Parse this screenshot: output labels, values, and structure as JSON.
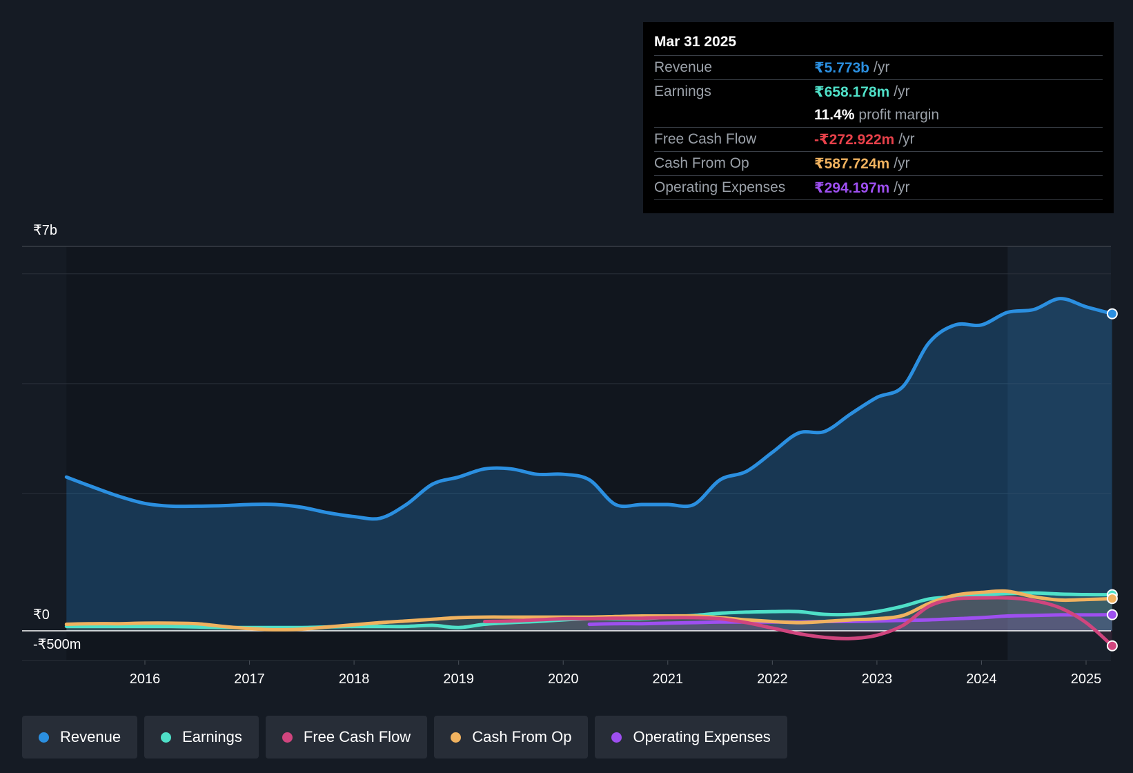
{
  "chart_data": {
    "type": "area",
    "y_axis": {
      "top_label": "₹7b",
      "zero_label": "₹0",
      "bottom_label": "-₹500m",
      "ylim": [
        -0.5,
        7.0
      ],
      "unit": "₹b"
    },
    "x_axis": {
      "ticks": [
        "2016",
        "2017",
        "2018",
        "2019",
        "2020",
        "2021",
        "2022",
        "2023",
        "2024",
        "2025"
      ],
      "xlim": [
        2015.25,
        2025.25
      ]
    },
    "grid": true,
    "highlight_range": [
      2024.25,
      2025.25
    ],
    "series": [
      {
        "name": "Revenue",
        "color": "#2b8fe0",
        "points": [
          [
            2015.25,
            2.8
          ],
          [
            2015.5,
            2.62
          ],
          [
            2015.75,
            2.45
          ],
          [
            2016.0,
            2.32
          ],
          [
            2016.25,
            2.27
          ],
          [
            2016.5,
            2.27
          ],
          [
            2016.75,
            2.28
          ],
          [
            2017.0,
            2.3
          ],
          [
            2017.25,
            2.3
          ],
          [
            2017.5,
            2.25
          ],
          [
            2017.75,
            2.15
          ],
          [
            2018.0,
            2.08
          ],
          [
            2018.25,
            2.05
          ],
          [
            2018.5,
            2.3
          ],
          [
            2018.75,
            2.67
          ],
          [
            2019.0,
            2.8
          ],
          [
            2019.25,
            2.95
          ],
          [
            2019.5,
            2.95
          ],
          [
            2019.75,
            2.85
          ],
          [
            2020.0,
            2.85
          ],
          [
            2020.25,
            2.75
          ],
          [
            2020.5,
            2.3
          ],
          [
            2020.75,
            2.3
          ],
          [
            2021.0,
            2.3
          ],
          [
            2021.25,
            2.3
          ],
          [
            2021.5,
            2.75
          ],
          [
            2021.75,
            2.9
          ],
          [
            2022.0,
            3.25
          ],
          [
            2022.25,
            3.6
          ],
          [
            2022.5,
            3.63
          ],
          [
            2022.75,
            3.95
          ],
          [
            2023.0,
            4.25
          ],
          [
            2023.25,
            4.45
          ],
          [
            2023.5,
            5.25
          ],
          [
            2023.75,
            5.57
          ],
          [
            2024.0,
            5.57
          ],
          [
            2024.25,
            5.8
          ],
          [
            2024.5,
            5.85
          ],
          [
            2024.75,
            6.05
          ],
          [
            2025.0,
            5.9
          ],
          [
            2025.25,
            5.773
          ]
        ]
      },
      {
        "name": "Earnings",
        "color": "#4fe0c8",
        "points": [
          [
            2015.25,
            0.08
          ],
          [
            2015.5,
            0.08
          ],
          [
            2015.75,
            0.08
          ],
          [
            2016.0,
            0.08
          ],
          [
            2016.25,
            0.08
          ],
          [
            2016.5,
            0.07
          ],
          [
            2016.75,
            0.06
          ],
          [
            2017.0,
            0.06
          ],
          [
            2017.25,
            0.06
          ],
          [
            2017.5,
            0.06
          ],
          [
            2017.75,
            0.07
          ],
          [
            2018.0,
            0.08
          ],
          [
            2018.25,
            0.08
          ],
          [
            2018.5,
            0.08
          ],
          [
            2018.75,
            0.1
          ],
          [
            2019.0,
            0.06
          ],
          [
            2019.25,
            0.12
          ],
          [
            2019.5,
            0.15
          ],
          [
            2019.75,
            0.17
          ],
          [
            2020.0,
            0.2
          ],
          [
            2020.25,
            0.22
          ],
          [
            2020.5,
            0.22
          ],
          [
            2020.75,
            0.22
          ],
          [
            2021.0,
            0.25
          ],
          [
            2021.25,
            0.28
          ],
          [
            2021.5,
            0.32
          ],
          [
            2021.75,
            0.34
          ],
          [
            2022.0,
            0.35
          ],
          [
            2022.25,
            0.35
          ],
          [
            2022.5,
            0.3
          ],
          [
            2022.75,
            0.3
          ],
          [
            2023.0,
            0.35
          ],
          [
            2023.25,
            0.45
          ],
          [
            2023.5,
            0.58
          ],
          [
            2023.75,
            0.62
          ],
          [
            2024.0,
            0.65
          ],
          [
            2024.25,
            0.68
          ],
          [
            2024.5,
            0.69
          ],
          [
            2024.75,
            0.67
          ],
          [
            2025.0,
            0.66
          ],
          [
            2025.25,
            0.658
          ]
        ]
      },
      {
        "name": "Free Cash Flow",
        "color": "#d0457e",
        "points": [
          [
            2019.25,
            0.17
          ],
          [
            2019.5,
            0.18
          ],
          [
            2019.75,
            0.2
          ],
          [
            2020.0,
            0.22
          ],
          [
            2020.25,
            0.22
          ],
          [
            2020.5,
            0.23
          ],
          [
            2020.75,
            0.23
          ],
          [
            2021.0,
            0.24
          ],
          [
            2021.25,
            0.24
          ],
          [
            2021.5,
            0.22
          ],
          [
            2021.75,
            0.15
          ],
          [
            2022.0,
            0.05
          ],
          [
            2022.25,
            -0.05
          ],
          [
            2022.5,
            -0.12
          ],
          [
            2022.75,
            -0.14
          ],
          [
            2023.0,
            -0.08
          ],
          [
            2023.25,
            0.1
          ],
          [
            2023.5,
            0.45
          ],
          [
            2023.75,
            0.58
          ],
          [
            2024.0,
            0.6
          ],
          [
            2024.25,
            0.6
          ],
          [
            2024.5,
            0.55
          ],
          [
            2024.75,
            0.42
          ],
          [
            2025.0,
            0.15
          ],
          [
            2025.25,
            -0.273
          ]
        ]
      },
      {
        "name": "Cash From Op",
        "color": "#f0b25f",
        "points": [
          [
            2015.25,
            0.12
          ],
          [
            2015.5,
            0.13
          ],
          [
            2015.75,
            0.13
          ],
          [
            2016.0,
            0.14
          ],
          [
            2016.25,
            0.14
          ],
          [
            2016.5,
            0.13
          ],
          [
            2016.75,
            0.08
          ],
          [
            2017.0,
            0.04
          ],
          [
            2017.25,
            0.02
          ],
          [
            2017.5,
            0.03
          ],
          [
            2017.75,
            0.07
          ],
          [
            2018.0,
            0.11
          ],
          [
            2018.25,
            0.15
          ],
          [
            2018.5,
            0.18
          ],
          [
            2018.75,
            0.21
          ],
          [
            2019.0,
            0.24
          ],
          [
            2019.25,
            0.25
          ],
          [
            2019.5,
            0.25
          ],
          [
            2019.75,
            0.25
          ],
          [
            2020.0,
            0.25
          ],
          [
            2020.25,
            0.25
          ],
          [
            2020.5,
            0.26
          ],
          [
            2020.75,
            0.27
          ],
          [
            2021.0,
            0.27
          ],
          [
            2021.25,
            0.27
          ],
          [
            2021.5,
            0.24
          ],
          [
            2021.75,
            0.2
          ],
          [
            2022.0,
            0.17
          ],
          [
            2022.25,
            0.15
          ],
          [
            2022.5,
            0.17
          ],
          [
            2022.75,
            0.2
          ],
          [
            2023.0,
            0.22
          ],
          [
            2023.25,
            0.28
          ],
          [
            2023.5,
            0.5
          ],
          [
            2023.75,
            0.65
          ],
          [
            2024.0,
            0.7
          ],
          [
            2024.25,
            0.72
          ],
          [
            2024.5,
            0.62
          ],
          [
            2024.75,
            0.56
          ],
          [
            2025.0,
            0.57
          ],
          [
            2025.25,
            0.588
          ]
        ]
      },
      {
        "name": "Operating Expenses",
        "color": "#9e4ff0",
        "points": [
          [
            2020.25,
            0.12
          ],
          [
            2020.5,
            0.13
          ],
          [
            2020.75,
            0.13
          ],
          [
            2021.0,
            0.14
          ],
          [
            2021.25,
            0.15
          ],
          [
            2021.5,
            0.16
          ],
          [
            2021.75,
            0.16
          ],
          [
            2022.0,
            0.16
          ],
          [
            2022.25,
            0.16
          ],
          [
            2022.5,
            0.17
          ],
          [
            2022.75,
            0.17
          ],
          [
            2023.0,
            0.18
          ],
          [
            2023.25,
            0.19
          ],
          [
            2023.5,
            0.2
          ],
          [
            2023.75,
            0.22
          ],
          [
            2024.0,
            0.24
          ],
          [
            2024.25,
            0.27
          ],
          [
            2024.5,
            0.28
          ],
          [
            2024.75,
            0.29
          ],
          [
            2025.0,
            0.29
          ],
          [
            2025.25,
            0.294
          ]
        ]
      }
    ]
  },
  "tooltip": {
    "date": "Mar 31 2025",
    "rows": [
      {
        "label": "Revenue",
        "value": "₹5.773b",
        "suffix": "/yr",
        "color": "#2b8fe0"
      },
      {
        "label": "Earnings",
        "value": "₹658.178m",
        "suffix": "/yr",
        "color": "#4fe0c8"
      },
      {
        "label": "",
        "value": "11.4%",
        "suffix": "profit margin",
        "color": "#ffffff"
      },
      {
        "label": "Free Cash Flow",
        "value": "-₹272.922m",
        "suffix": "/yr",
        "color": "#e8414a"
      },
      {
        "label": "Cash From Op",
        "value": "₹587.724m",
        "suffix": "/yr",
        "color": "#f0b25f"
      },
      {
        "label": "Operating Expenses",
        "value": "₹294.197m",
        "suffix": "/yr",
        "color": "#9e4ff0"
      }
    ]
  },
  "legend": [
    {
      "label": "Revenue",
      "color": "#2b8fe0"
    },
    {
      "label": "Earnings",
      "color": "#4fe0c8"
    },
    {
      "label": "Free Cash Flow",
      "color": "#d0457e"
    },
    {
      "label": "Cash From Op",
      "color": "#f0b25f"
    },
    {
      "label": "Operating Expenses",
      "color": "#9e4ff0"
    }
  ]
}
